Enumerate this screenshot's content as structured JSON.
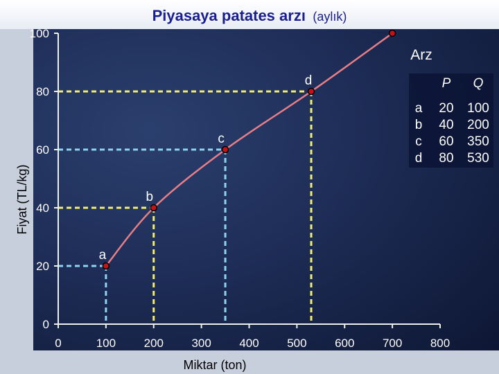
{
  "header": {
    "title": "Piyasaya patates arzı",
    "subtitle": "(aylık)"
  },
  "colors": {
    "curve": "#e87f86",
    "point_fill": "#c0141c",
    "guide_yellow": "#f2f06a",
    "guide_blue": "#8fd4ee",
    "axis": "#f0f0f0"
  },
  "chart_data": {
    "type": "line",
    "xlabel": "Miktar (ton)",
    "ylabel": "Fiyat (TL/kg)",
    "xlim": [
      0,
      800
    ],
    "ylim": [
      0,
      100
    ],
    "x_ticks": [
      "0",
      "100",
      "200",
      "300",
      "400",
      "500",
      "600",
      "700",
      "800"
    ],
    "y_ticks": [
      "0",
      "20",
      "40",
      "60",
      "80",
      "100"
    ],
    "series": [
      {
        "name": "Arz",
        "x": [
          100,
          200,
          350,
          530,
          700
        ],
        "y": [
          20,
          40,
          60,
          80,
          100
        ]
      }
    ],
    "points": [
      {
        "label": "a",
        "x": 100,
        "y": 20,
        "guide": "blue"
      },
      {
        "label": "b",
        "x": 200,
        "y": 40,
        "guide": "yellow"
      },
      {
        "label": "c",
        "x": 350,
        "y": 60,
        "guide": "blue"
      },
      {
        "label": "d",
        "x": 530,
        "y": 80,
        "guide": "yellow"
      }
    ],
    "table": {
      "headers": [
        "",
        "P",
        "Q"
      ],
      "rows": [
        [
          "a",
          "20",
          "100"
        ],
        [
          "b",
          "40",
          "200"
        ],
        [
          "c",
          "60",
          "350"
        ],
        [
          "d",
          "80",
          "530"
        ]
      ]
    }
  }
}
